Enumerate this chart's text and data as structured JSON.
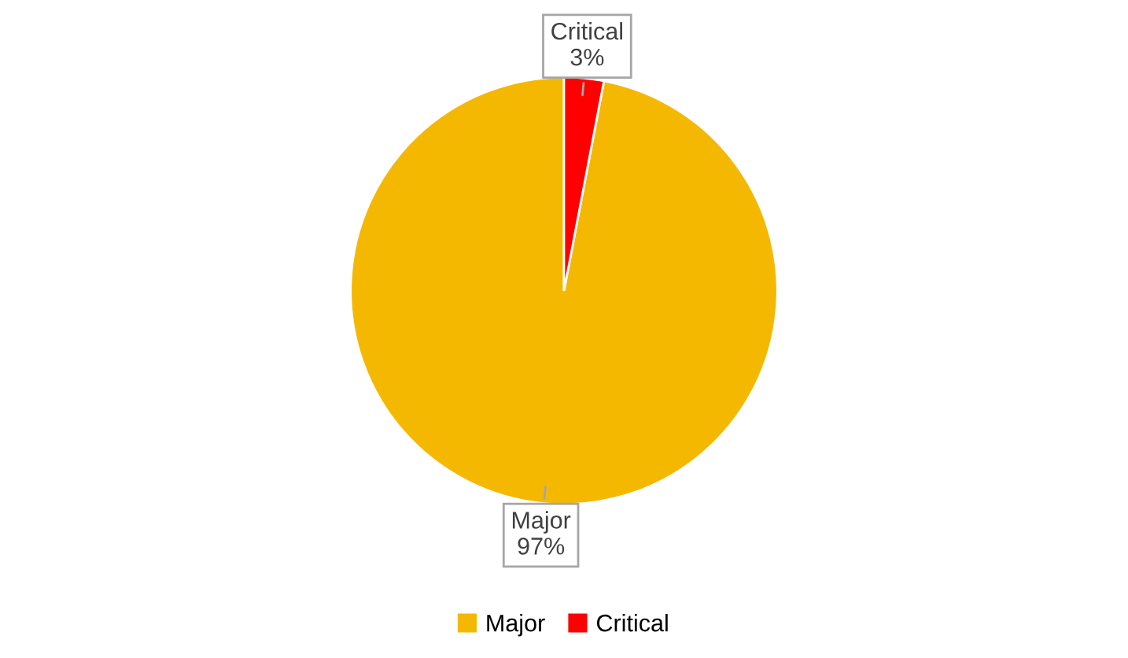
{
  "chart_data": {
    "type": "pie",
    "categories": [
      "Major",
      "Critical"
    ],
    "values": [
      97,
      3
    ],
    "colors": [
      "#f5b800",
      "#ff0000"
    ],
    "value_labels": [
      "Major\n97%",
      "Critical\n3%"
    ],
    "legend": "bottom"
  }
}
